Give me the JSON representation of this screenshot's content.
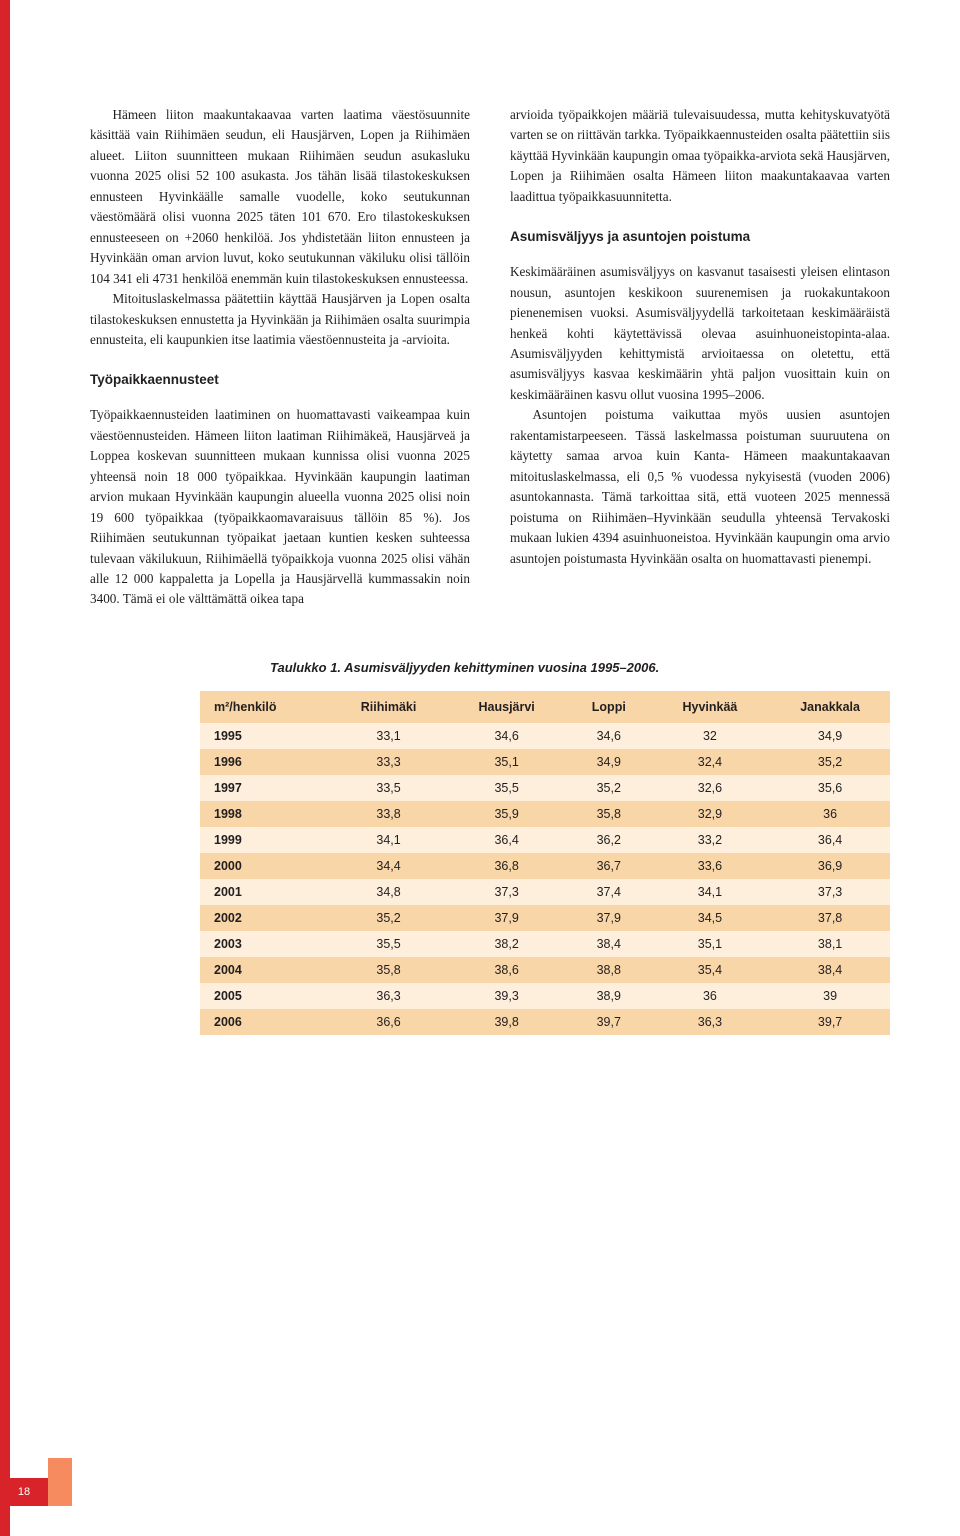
{
  "page_number": "18",
  "colors": {
    "accent_red": "#d8232a",
    "accent_orange": "#f58b5e",
    "row_light": "#fdefdc",
    "row_dark": "#f8d6a8",
    "text": "#231f20"
  },
  "left_column": {
    "p1": "Hämeen liiton maakuntakaavaa varten laatima väestösuunnite käsittää vain Riihimäen seudun, eli Hausjärven, Lopen ja Riihimäen alueet. Liiton suunnitteen mukaan Riihimäen seudun asukasluku vuonna 2025 olisi 52 100 asukasta. Jos tähän lisää tilastokeskuksen ennusteen Hyvinkäälle samalle vuodelle, koko seutukunnan väestömäärä olisi vuonna 2025 täten 101 670. Ero tilastokeskuksen ennusteeseen on +2060 henkilöä. Jos yhdistetään liiton ennusteen ja Hyvinkään oman arvion luvut, koko seutukunnan väkiluku olisi tällöin 104 341 eli 4731 henkilöä enemmän kuin tilastokeskuksen ennusteessa.",
    "p2": "Mitoituslaskelmassa päätettiin käyttää Hausjärven ja Lopen osalta tilastokeskuksen ennustetta ja Hyvinkään ja Riihimäen osalta suurimpia ennusteita, eli kaupunkien itse laatimia väestöennusteita ja -arvioita.",
    "h_tyopaikka": "Työpaikkaennusteet",
    "p3": "Työpaikkaennusteiden laatiminen on huomattavasti vaikeampaa kuin väestöennusteiden. Hämeen liiton laatiman Riihimäkeä, Hausjärveä ja Loppea koskevan suunnitteen mukaan kunnissa olisi vuonna 2025 yhteensä noin 18 000 työpaikkaa. Hyvinkään kaupungin laatiman arvion mukaan Hyvinkään kaupungin alueella vuonna 2025 olisi noin 19 600 työpaikkaa (työpaikkaomavaraisuus tällöin 85 %). Jos Riihimäen seutukunnan työpaikat jaetaan kuntien kesken suhteessa tulevaan väkilukuun, Riihimäellä työpaikkoja vuonna 2025 olisi vähän alle 12 000 kappaletta ja Lopella ja Hausjärvellä kummassakin noin 3400. Tämä ei ole välttämättä oikea tapa"
  },
  "right_column": {
    "p1": "arvioida työpaikkojen määriä tulevaisuudessa, mutta kehityskuvatyötä varten se on riittävän tarkka. Työpaikkaennusteiden osalta päätettiin siis käyttää Hyvinkään kaupungin omaa työpaikka-arviota sekä Hausjärven, Lopen ja Riihimäen osalta Hämeen liiton maakuntakaavaa varten laadittua työpaikkasuunnitetta.",
    "h_asumis": "Asumisväljyys ja asuntojen poistuma",
    "p2": "Keskimääräinen asumisväljyys on kasvanut tasaisesti yleisen elintason nousun, asuntojen keskikoon suurenemisen ja ruokakuntakoon pienenemisen vuoksi. Asumisväljyydellä tarkoitetaan keskimääräistä henkeä kohti käytettävissä olevaa asuinhuoneistopinta-alaa. Asumisväljyyden kehittymistä arvioitaessa on oletettu, että asumisväljyys kasvaa keskimäärin yhtä paljon vuosittain kuin on keskimääräinen kasvu ollut vuosina 1995–2006.",
    "p3": "Asuntojen poistuma vaikuttaa myös uusien asuntojen rakentamistarpeeseen. Tässä laskelmassa poistuman suuruutena on käytetty samaa arvoa kuin Kanta- Hämeen maakuntakaavan mitoituslaskelmassa, eli 0,5 % vuodessa nykyisestä (vuoden 2006) asuntokannasta. Tämä tarkoittaa sitä, että vuoteen 2025 mennessä poistuma on Riihimäen–Hyvinkään seudulla yhteensä Tervakoski mukaan lukien 4394 asuinhuoneistoa. Hyvinkään kaupungin oma arvio asuntojen poistumasta Hyvinkään osalta on huomattavasti pienempi."
  },
  "table": {
    "caption": "Taulukko 1. Asumisväljyyden kehittyminen vuosina 1995–2006.",
    "columns": [
      "m²/henkilö",
      "Riihimäki",
      "Hausjärvi",
      "Loppi",
      "Hyvinkää",
      "Janakkala"
    ],
    "rows": [
      [
        "1995",
        "33,1",
        "34,6",
        "34,6",
        "32",
        "34,9"
      ],
      [
        "1996",
        "33,3",
        "35,1",
        "34,9",
        "32,4",
        "35,2"
      ],
      [
        "1997",
        "33,5",
        "35,5",
        "35,2",
        "32,6",
        "35,6"
      ],
      [
        "1998",
        "33,8",
        "35,9",
        "35,8",
        "32,9",
        "36"
      ],
      [
        "1999",
        "34,1",
        "36,4",
        "36,2",
        "33,2",
        "36,4"
      ],
      [
        "2000",
        "34,4",
        "36,8",
        "36,7",
        "33,6",
        "36,9"
      ],
      [
        "2001",
        "34,8",
        "37,3",
        "37,4",
        "34,1",
        "37,3"
      ],
      [
        "2002",
        "35,2",
        "37,9",
        "37,9",
        "34,5",
        "37,8"
      ],
      [
        "2003",
        "35,5",
        "38,2",
        "38,4",
        "35,1",
        "38,1"
      ],
      [
        "2004",
        "35,8",
        "38,6",
        "38,8",
        "35,4",
        "38,4"
      ],
      [
        "2005",
        "36,3",
        "39,3",
        "38,9",
        "36",
        "39"
      ],
      [
        "2006",
        "36,6",
        "39,8",
        "39,7",
        "36,3",
        "39,7"
      ]
    ]
  }
}
